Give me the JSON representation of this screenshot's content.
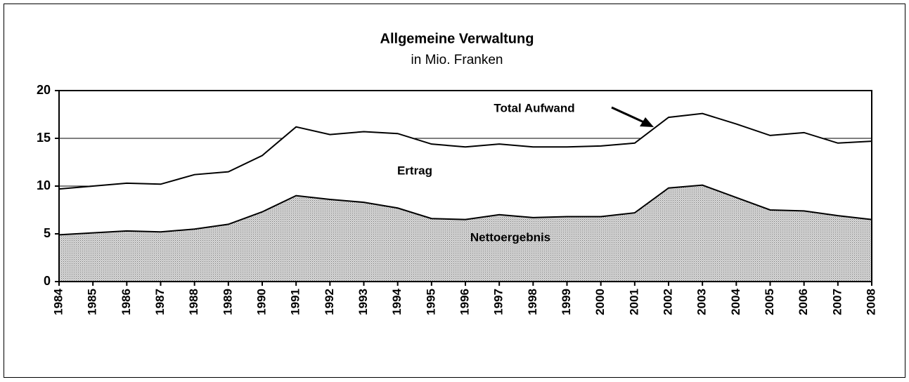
{
  "chart_data": {
    "type": "area",
    "title": "Allgemeine Verwaltung",
    "subtitle": "in Mio. Franken",
    "categories": [
      "1984",
      "1985",
      "1986",
      "1987",
      "1988",
      "1989",
      "1990",
      "1991",
      "1992",
      "1993",
      "1994",
      "1995",
      "1996",
      "1997",
      "1998",
      "1999",
      "2000",
      "2001",
      "2002",
      "2003",
      "2004",
      "2005",
      "2006",
      "2007",
      "2008"
    ],
    "series": [
      {
        "name": "Total Aufwand",
        "color": "#ffffff",
        "values": [
          9.7,
          10.0,
          10.3,
          10.2,
          11.2,
          11.5,
          13.2,
          16.2,
          15.4,
          15.7,
          15.5,
          14.4,
          14.1,
          14.4,
          14.1,
          14.1,
          14.2,
          14.5,
          17.2,
          17.6,
          16.5,
          15.3,
          15.6,
          14.5,
          14.7
        ]
      },
      {
        "name": "Nettoergebnis",
        "color": "#c8c8c8",
        "values": [
          4.9,
          5.1,
          5.3,
          5.2,
          5.5,
          6.0,
          7.3,
          9.0,
          8.6,
          8.3,
          7.7,
          6.6,
          6.5,
          7.0,
          6.7,
          6.8,
          6.8,
          7.2,
          9.8,
          10.1,
          8.8,
          7.5,
          7.4,
          6.9,
          6.5
        ]
      }
    ],
    "annotations": [
      "Total Aufwand",
      "Ertrag",
      "Nettoergebnis"
    ],
    "ylim": [
      0,
      20
    ],
    "yticks": [
      0,
      5,
      10,
      15,
      20
    ],
    "grid": true
  }
}
